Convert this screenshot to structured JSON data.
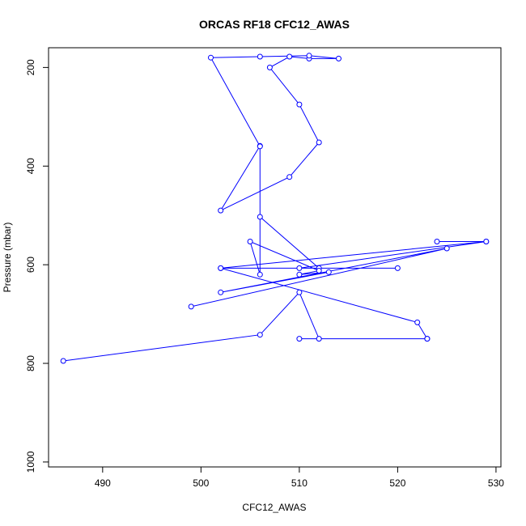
{
  "chart_data": {
    "type": "line",
    "title": "ORCAS RF18 CFC12_AWAS",
    "xlabel": "CFC12_AWAS",
    "ylabel": "Pressure (mbar)",
    "xlim": [
      484.5,
      530.5
    ],
    "ylim": [
      1010,
      160
    ],
    "y_inverted": true,
    "grid": false,
    "x_ticks": [
      490,
      500,
      510,
      520,
      530
    ],
    "y_ticks": [
      200,
      400,
      600,
      800,
      1000
    ],
    "x_tick_labels": [
      "490",
      "500",
      "510",
      "520",
      "530"
    ],
    "y_tick_labels": [
      "200",
      "400",
      "600",
      "800",
      "1000"
    ],
    "series": [
      {
        "line_color": "#0000ff",
        "marker": "open-circle",
        "x": [
          486,
          506,
          510,
          512,
          510,
          523,
          523,
          522,
          502,
          510,
          529,
          524,
          529,
          502,
          520,
          512,
          506,
          506,
          502,
          509,
          512,
          510,
          507,
          509,
          511,
          514,
          511,
          506,
          501,
          506,
          506,
          505,
          512,
          510,
          513,
          502,
          525,
          499
        ],
        "y": [
          795,
          742,
          656,
          750,
          750,
          750,
          750,
          717,
          607,
          607,
          553,
          553,
          553,
          607,
          607,
          607,
          503,
          359,
          490,
          422,
          352,
          275,
          200,
          178,
          182,
          182,
          176,
          178,
          180,
          360,
          620,
          553,
          612,
          620,
          615,
          656,
          567,
          685
        ]
      }
    ]
  }
}
